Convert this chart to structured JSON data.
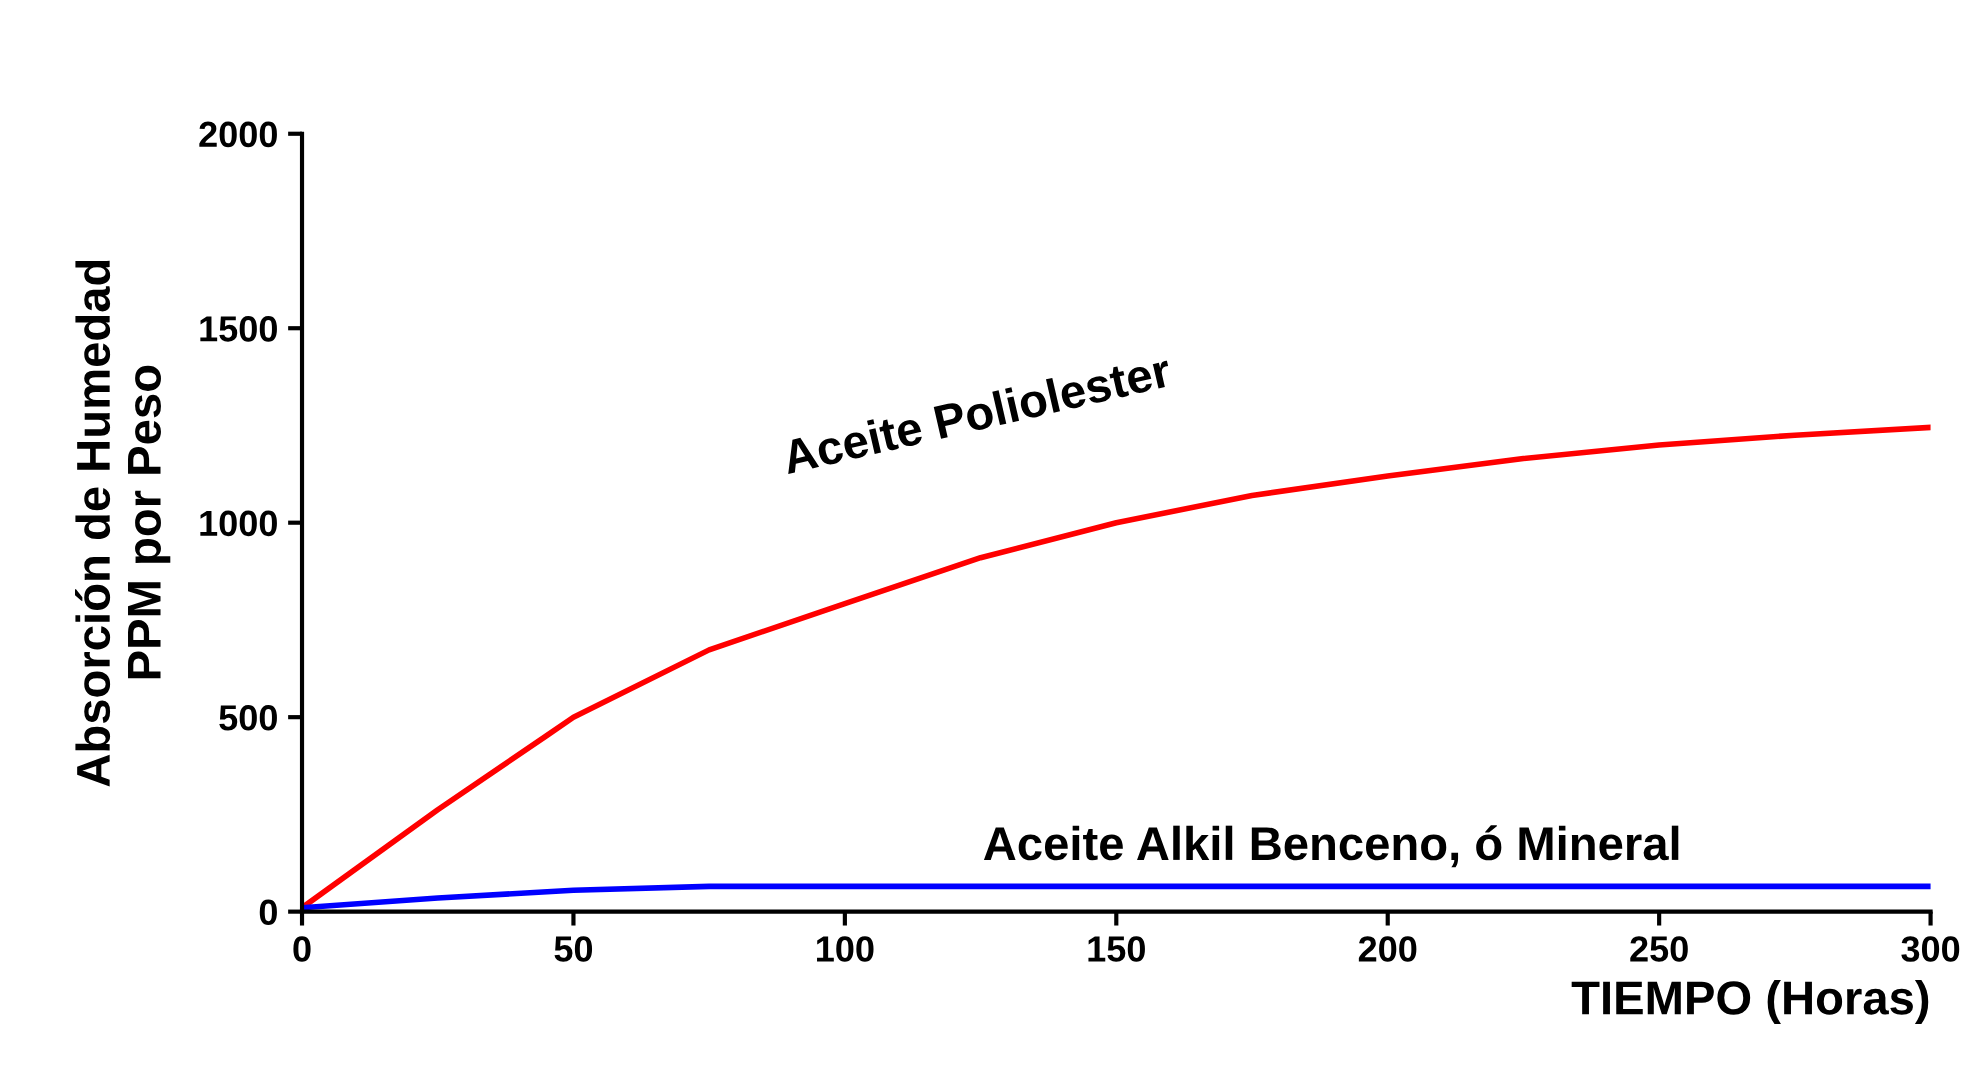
{
  "chart_data": {
    "type": "line",
    "xlabel": "TIEMPO (Horas)",
    "ylabel": "Absorción de Humedad\nPPM por Peso",
    "xlim": [
      0,
      300
    ],
    "xticks": [
      0,
      50,
      100,
      150,
      200,
      250,
      300
    ],
    "ylim": [
      0,
      2000
    ],
    "yticks": [
      0,
      500,
      1000,
      1500,
      2000
    ],
    "grid": false,
    "legend": false,
    "marker": "none",
    "line_style": "solid",
    "series": [
      {
        "color": "#ff0000",
        "x": [
          0,
          25,
          45,
          50,
          75,
          100,
          125,
          150,
          175,
          200,
          225,
          250,
          275,
          300
        ],
        "values": [
          10,
          262,
          452,
          500,
          673,
          792,
          910,
          1000,
          1070,
          1120,
          1165,
          1200,
          1225,
          1245
        ]
      },
      {
        "color": "#0000ff",
        "x": [
          0,
          25,
          50,
          75,
          100,
          150,
          200,
          250,
          300
        ],
        "values": [
          10,
          35,
          55,
          65,
          65,
          65,
          65,
          65,
          65
        ]
      }
    ],
    "annotations": [
      {
        "text": "Aceite Poliolester",
        "x": 150,
        "y": 1000
      },
      {
        "text": "Aceite Alkil Benceno, ó Mineral",
        "x": 200,
        "y": 65
      }
    ]
  }
}
